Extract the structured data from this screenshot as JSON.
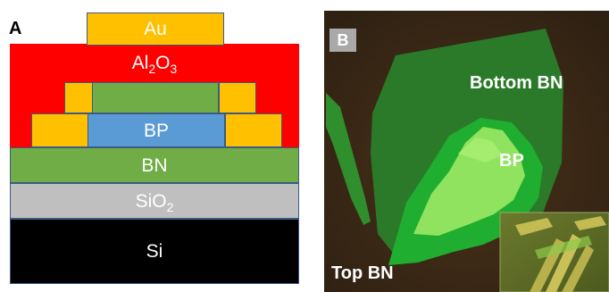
{
  "panel_a": {
    "letter": "A",
    "layers": {
      "au": "Au",
      "al2o3": {
        "base": "Al",
        "sub1": "2",
        "mid": "O",
        "sub2": "3"
      },
      "bp": "BP",
      "bn": "BN",
      "sio2": {
        "base": "SiO",
        "sub": "2"
      },
      "si": "Si"
    },
    "colors": {
      "au": "#ffc000",
      "al2o3": "#ff0000",
      "bp": "#5b9bd5",
      "bn": "#70ad47",
      "sio2": "#bfbfbf",
      "si": "#000000",
      "border": "#3c5a84"
    }
  },
  "panel_b": {
    "letter": "B",
    "labels": {
      "bottom_bn": "Bottom BN",
      "bp": "BP",
      "top_bn": "Top BN"
    },
    "colors": {
      "background": "#3a2a17",
      "bottom_bn": "#2e7d32",
      "top_bn": "#1faa2a",
      "bp": "#8ee05a"
    }
  }
}
